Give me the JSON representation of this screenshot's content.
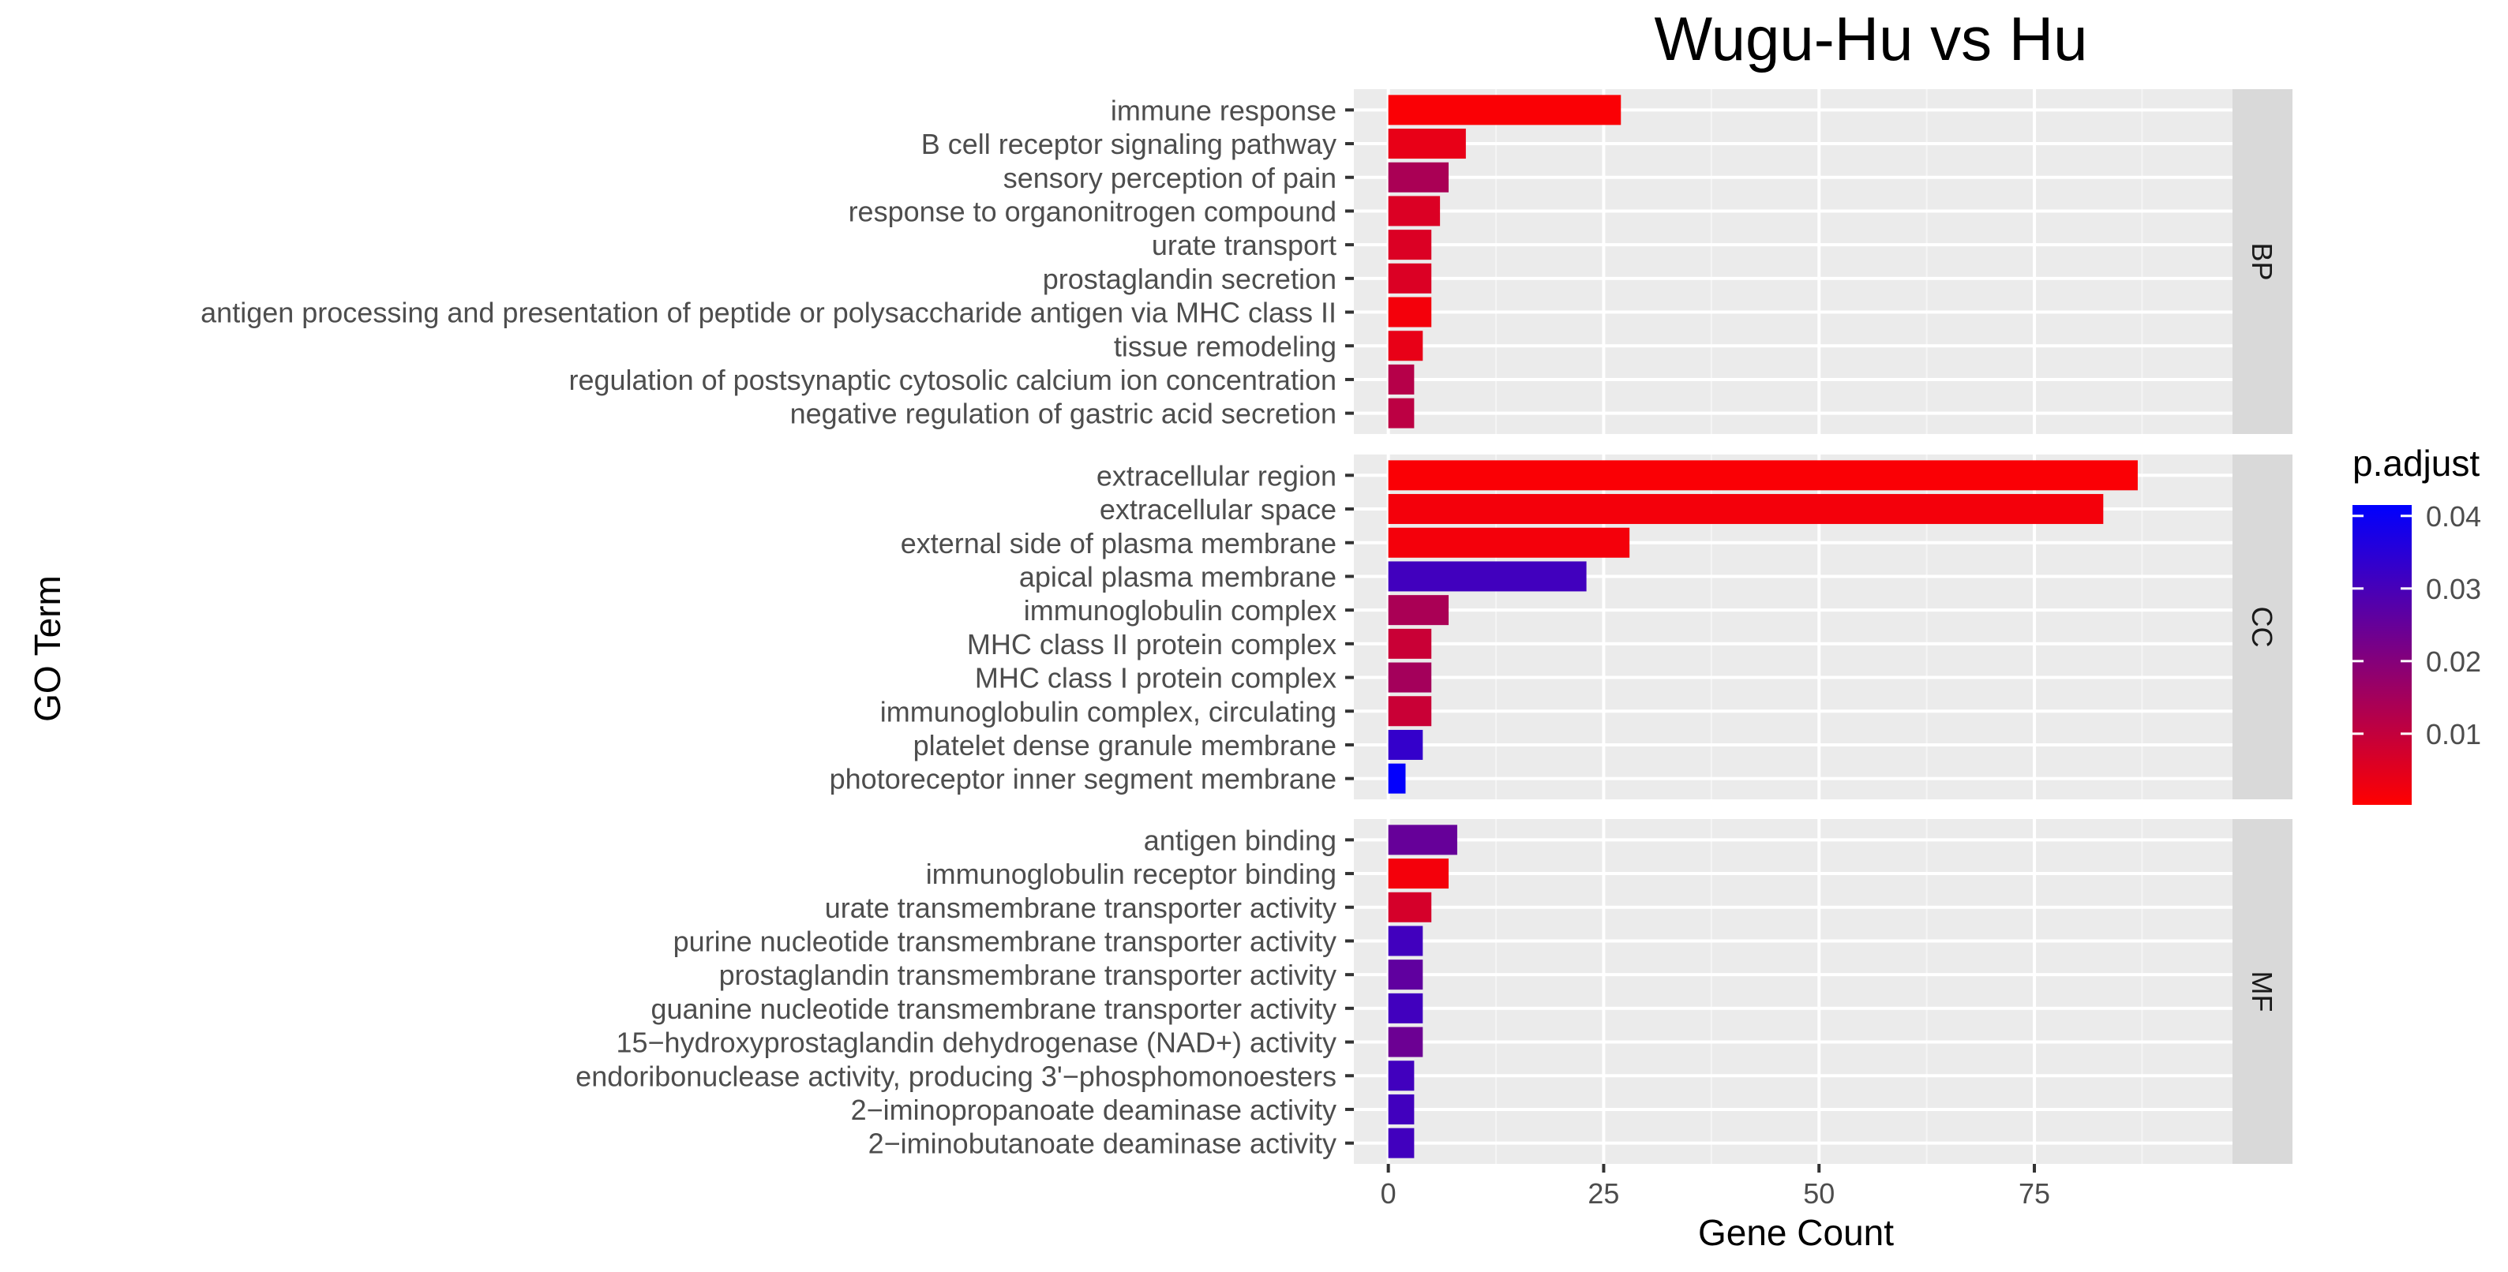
{
  "chart_data": {
    "type": "bar",
    "orientation": "horizontal",
    "title": "Wugu-Hu vs Hu",
    "xlabel": "Gene Count",
    "ylabel": "GO Term",
    "xticks": [
      0,
      25,
      50,
      75
    ],
    "xlim": [
      -4,
      98
    ],
    "grid": true,
    "legend": {
      "title": "p.adjust",
      "position": "right",
      "ticks": [
        0.01,
        0.02,
        0.03,
        0.04
      ],
      "range": [
        0.0002,
        0.0415
      ],
      "colors": {
        "low": "#FF0000",
        "high": "#0000FF"
      }
    },
    "panels": [
      {
        "strip": "BP",
        "bars": [
          {
            "term": "immune response",
            "count": 27,
            "p_adjust": 0.001
          },
          {
            "term": "B cell receptor signaling pathway",
            "count": 9,
            "p_adjust": 0.004
          },
          {
            "term": "sensory perception of pain",
            "count": 7,
            "p_adjust": 0.014
          },
          {
            "term": "response to organonitrogen compound",
            "count": 6,
            "p_adjust": 0.006
          },
          {
            "term": "urate transport",
            "count": 5,
            "p_adjust": 0.006
          },
          {
            "term": "prostaglandin secretion",
            "count": 5,
            "p_adjust": 0.006
          },
          {
            "term": "antigen processing and presentation of peptide or polysaccharide antigen via MHC class II",
            "count": 5,
            "p_adjust": 0.002
          },
          {
            "term": "tissue remodeling",
            "count": 4,
            "p_adjust": 0.004
          },
          {
            "term": "regulation of postsynaptic cytosolic calcium ion concentration",
            "count": 3,
            "p_adjust": 0.012
          },
          {
            "term": "negative regulation of gastric acid secretion",
            "count": 3,
            "p_adjust": 0.011
          }
        ]
      },
      {
        "strip": "CC",
        "bars": [
          {
            "term": "extracellular region",
            "count": 87,
            "p_adjust": 0.001
          },
          {
            "term": "extracellular space",
            "count": 83,
            "p_adjust": 0.002
          },
          {
            "term": "external side of plasma membrane",
            "count": 28,
            "p_adjust": 0.002
          },
          {
            "term": "apical plasma membrane",
            "count": 23,
            "p_adjust": 0.031
          },
          {
            "term": "immunoglobulin complex",
            "count": 7,
            "p_adjust": 0.014
          },
          {
            "term": "MHC class II protein complex",
            "count": 5,
            "p_adjust": 0.009
          },
          {
            "term": "MHC class I protein complex",
            "count": 5,
            "p_adjust": 0.015
          },
          {
            "term": "immunoglobulin complex, circulating",
            "count": 5,
            "p_adjust": 0.009
          },
          {
            "term": "platelet dense granule membrane",
            "count": 4,
            "p_adjust": 0.033
          },
          {
            "term": "photoreceptor inner segment membrane",
            "count": 2,
            "p_adjust": 0.041
          }
        ]
      },
      {
        "strip": "MF",
        "bars": [
          {
            "term": "antigen binding",
            "count": 8,
            "p_adjust": 0.025
          },
          {
            "term": "immunoglobulin receptor binding",
            "count": 7,
            "p_adjust": 0.002
          },
          {
            "term": "urate transmembrane transporter activity",
            "count": 5,
            "p_adjust": 0.007
          },
          {
            "term": "purine nucleotide transmembrane transporter activity",
            "count": 4,
            "p_adjust": 0.031
          },
          {
            "term": "prostaglandin transmembrane transporter activity",
            "count": 4,
            "p_adjust": 0.026
          },
          {
            "term": "guanine nucleotide transmembrane transporter activity",
            "count": 4,
            "p_adjust": 0.031
          },
          {
            "term": "15−hydroxyprostaglandin dehydrogenase (NAD+) activity",
            "count": 4,
            "p_adjust": 0.024
          },
          {
            "term": "endoribonuclease activity, producing 3'−phosphomonoesters",
            "count": 3,
            "p_adjust": 0.031
          },
          {
            "term": "2−iminopropanoate deaminase activity",
            "count": 3,
            "p_adjust": 0.031
          },
          {
            "term": "2−iminobutanoate deaminase activity",
            "count": 3,
            "p_adjust": 0.031
          }
        ]
      }
    ]
  }
}
